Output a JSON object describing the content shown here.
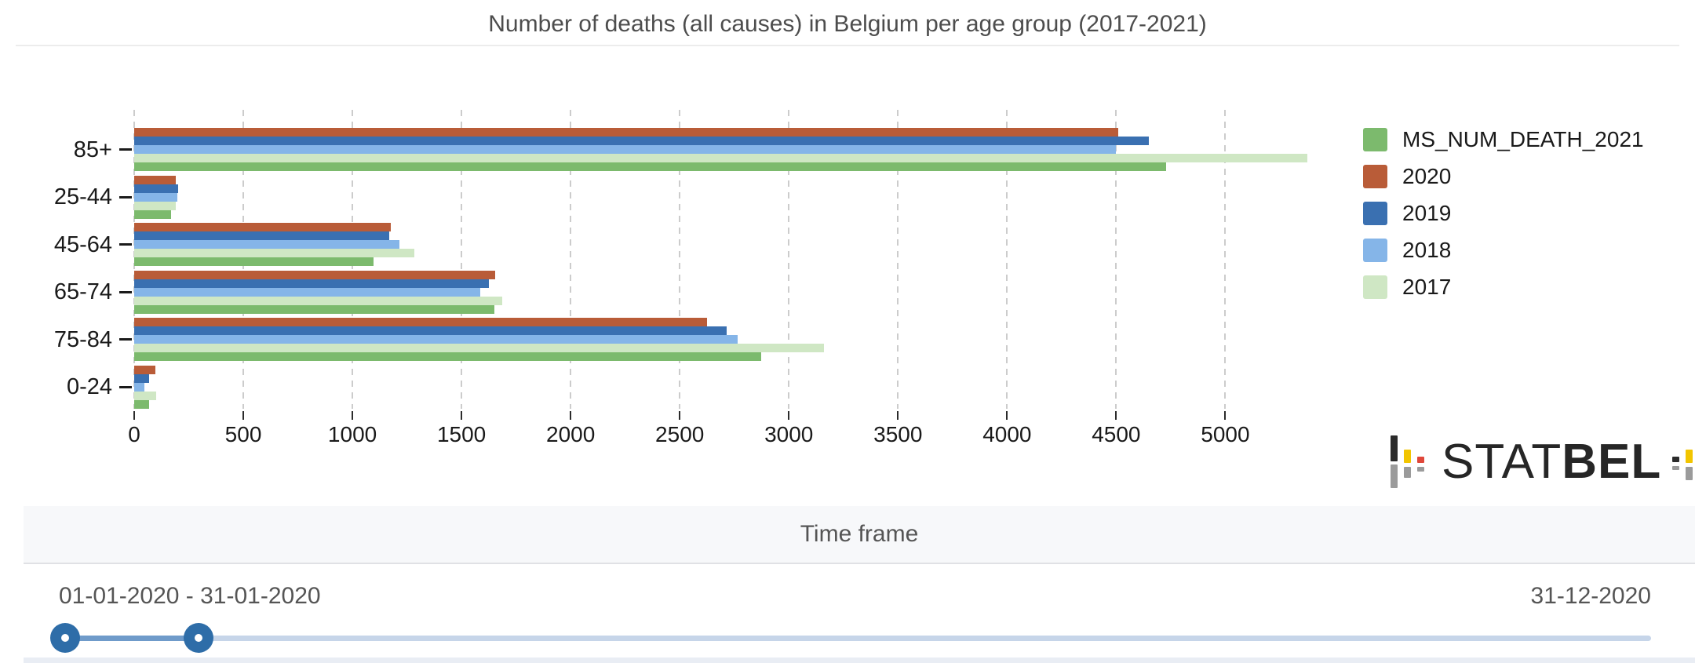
{
  "title": "Number of deaths (all causes) in Belgium per age group (2017-2021)",
  "chart_data": {
    "type": "bar",
    "orientation": "horizontal",
    "title": "Number of deaths (all causes) in Belgium per age group (2017-2021)",
    "categories": [
      "85+",
      "25-44",
      "45-64",
      "65-74",
      "75-84",
      "0-24"
    ],
    "series": [
      {
        "name": "2020",
        "color": "#b95c38",
        "values": [
          4510,
          190,
          1175,
          1655,
          2625,
          98
        ]
      },
      {
        "name": "2019",
        "color": "#3a70b1",
        "values": [
          4650,
          200,
          1170,
          1625,
          2715,
          68
        ]
      },
      {
        "name": "2018",
        "color": "#85b5e8",
        "values": [
          4500,
          198,
          1215,
          1585,
          2765,
          48
        ]
      },
      {
        "name": "2017",
        "color": "#cfe7c4",
        "values": [
          5375,
          190,
          1285,
          1685,
          3160,
          100
        ]
      },
      {
        "name": "MS_NUM_DEATH_2021",
        "color": "#7cba6d",
        "values": [
          4730,
          170,
          1095,
          1650,
          2875,
          69
        ]
      }
    ],
    "legend_order": [
      "MS_NUM_DEATH_2021",
      "2020",
      "2019",
      "2018",
      "2017"
    ],
    "legend_position": "right",
    "x_ticks": [
      0,
      500,
      1000,
      1500,
      2000,
      2500,
      3000,
      3500,
      4000,
      4500,
      5000
    ],
    "xlim": [
      0,
      5394
    ],
    "xlabel": "",
    "ylabel": "",
    "grid": "dashed-vertical"
  },
  "logo": {
    "stat": "STAT",
    "bel": "BEL",
    "colors": {
      "black": "#2b2b2b",
      "gray": "#9b9b9b",
      "yellow": "#f2c500",
      "red": "#e0473a"
    }
  },
  "timeframe": {
    "heading": "Time frame",
    "range_label": "01-01-2020 - 31-01-2020",
    "max_label": "31-12-2020",
    "slider": {
      "selected_start": "01-01-2020",
      "selected_end": "31-01-2020",
      "max": "31-12-2020",
      "active_color": "#6f9bca",
      "track_color": "#c6d5e9",
      "handle_color": "#2e6da8"
    }
  }
}
